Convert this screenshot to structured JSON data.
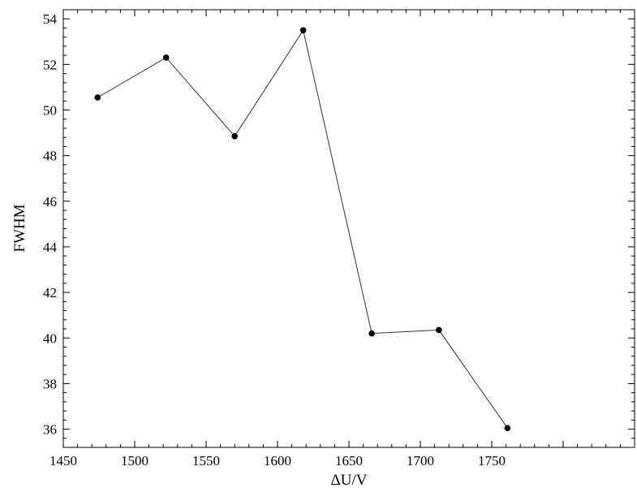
{
  "chart_data": {
    "type": "line",
    "title": "",
    "xlabel": "ΔU/V",
    "ylabel": "FWHM",
    "xlim": [
      1450,
      1850
    ],
    "ylim": [
      35.2,
      54.4
    ],
    "xticks": [
      1450,
      1500,
      1550,
      1600,
      1650,
      1700,
      1750
    ],
    "yticks": [
      36,
      38,
      40,
      42,
      44,
      46,
      48,
      50,
      52,
      54
    ],
    "grid": false,
    "marker": "filled-circle",
    "series": [
      {
        "x": [
          1474,
          1522,
          1570,
          1618,
          1666,
          1713,
          1761
        ],
        "y": [
          50.55,
          52.3,
          48.85,
          53.5,
          40.2,
          40.35,
          36.05
        ]
      }
    ]
  }
}
